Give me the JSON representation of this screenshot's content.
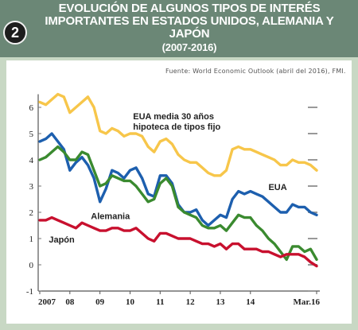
{
  "header": {
    "badge": "2",
    "title_line1": "EVOLUCIÓN DE ALGUNOS TIPOS DE INTERÉS",
    "title_line2": "IMPORTANTES EN ESTADOS UNIDOS, ALEMANIA Y",
    "title_line3": "JAPÓN",
    "title_line4": "(2007-2016)"
  },
  "source": "Fuente: World Economic Outlook (abril del 2016), FMI.",
  "chart_data": {
    "type": "line",
    "title": "EVOLUCIÓN DE ALGUNOS TIPOS DE INTERÉS IMPORTANTES EN ESTADOS UNIDOS, ALEMANIA Y JAPÓN (2007-2016)",
    "ylim": [
      -1,
      6.7
    ],
    "yticks": [
      "6",
      "5",
      "4",
      "3",
      "2",
      "1",
      "0",
      "-1"
    ],
    "ytick_values": [
      6,
      5,
      4,
      3,
      2,
      1,
      0,
      -1
    ],
    "xtick_labels": [
      "2007",
      "08",
      "09",
      "10",
      "11",
      "12",
      "13",
      "14",
      "Mar.16"
    ],
    "xtick_values": [
      2007.0,
      2008.0,
      2009.0,
      2010.0,
      2011.0,
      2012.0,
      2013.0,
      2014.0,
      2016.2
    ],
    "xlim": [
      2007.0,
      2016.2
    ],
    "grid": false,
    "series": [
      {
        "name": "EUA media 30 años hipoteca de tipos fijo",
        "color": "#f7c64a",
        "label_lines": [
          "EUA media 30 años",
          "hipoteca de tipos fijo"
        ],
        "x": [
          2007.0,
          2007.2,
          2007.4,
          2007.6,
          2007.8,
          2008.0,
          2008.2,
          2008.4,
          2008.6,
          2008.8,
          2009.0,
          2009.2,
          2009.4,
          2009.6,
          2009.8,
          2010.0,
          2010.2,
          2010.4,
          2010.6,
          2010.8,
          2011.0,
          2011.2,
          2011.4,
          2011.6,
          2011.8,
          2012.0,
          2012.2,
          2012.4,
          2012.6,
          2012.8,
          2013.0,
          2013.2,
          2013.4,
          2013.6,
          2013.8,
          2014.0,
          2014.2,
          2014.4,
          2014.6,
          2014.8,
          2015.0,
          2015.2,
          2015.4,
          2015.6,
          2015.8,
          2016.0,
          2016.2
        ],
        "values": [
          6.2,
          6.1,
          6.3,
          6.5,
          6.4,
          5.8,
          6.0,
          6.2,
          6.4,
          6.0,
          5.1,
          5.0,
          5.2,
          5.1,
          4.9,
          5.0,
          5.0,
          4.9,
          4.5,
          4.3,
          4.7,
          4.8,
          4.6,
          4.2,
          4.0,
          3.9,
          3.9,
          3.7,
          3.5,
          3.4,
          3.4,
          3.6,
          4.4,
          4.5,
          4.4,
          4.4,
          4.3,
          4.2,
          4.1,
          4.0,
          3.8,
          3.8,
          4.0,
          3.9,
          3.9,
          3.8,
          3.6
        ]
      },
      {
        "name": "EUA",
        "color": "#1d5fae",
        "label_lines": [
          "EUA"
        ],
        "x": [
          2007.0,
          2007.2,
          2007.4,
          2007.6,
          2007.8,
          2008.0,
          2008.2,
          2008.4,
          2008.6,
          2008.8,
          2009.0,
          2009.2,
          2009.4,
          2009.6,
          2009.8,
          2010.0,
          2010.2,
          2010.4,
          2010.6,
          2010.8,
          2011.0,
          2011.2,
          2011.4,
          2011.6,
          2011.8,
          2012.0,
          2012.2,
          2012.4,
          2012.6,
          2012.8,
          2013.0,
          2013.2,
          2013.4,
          2013.6,
          2013.8,
          2014.0,
          2014.2,
          2014.4,
          2014.6,
          2014.8,
          2015.0,
          2015.2,
          2015.4,
          2015.6,
          2015.8,
          2016.0,
          2016.2
        ],
        "values": [
          4.7,
          4.8,
          5.0,
          4.7,
          4.4,
          3.6,
          3.9,
          4.1,
          3.8,
          3.3,
          2.4,
          2.9,
          3.6,
          3.5,
          3.3,
          3.6,
          3.7,
          3.3,
          2.7,
          2.6,
          3.4,
          3.4,
          3.1,
          2.3,
          2.0,
          2.0,
          2.1,
          1.7,
          1.5,
          1.7,
          1.9,
          1.8,
          2.5,
          2.8,
          2.7,
          2.8,
          2.7,
          2.6,
          2.4,
          2.2,
          2.0,
          2.0,
          2.3,
          2.2,
          2.2,
          2.0,
          1.9
        ]
      },
      {
        "name": "Alemania",
        "color": "#3a8a2f",
        "label_lines": [
          "Alemania"
        ],
        "x": [
          2007.0,
          2007.2,
          2007.4,
          2007.6,
          2007.8,
          2008.0,
          2008.2,
          2008.4,
          2008.6,
          2008.8,
          2009.0,
          2009.2,
          2009.4,
          2009.6,
          2009.8,
          2010.0,
          2010.2,
          2010.4,
          2010.6,
          2010.8,
          2011.0,
          2011.2,
          2011.4,
          2011.6,
          2011.8,
          2012.0,
          2012.2,
          2012.4,
          2012.6,
          2012.8,
          2013.0,
          2013.2,
          2013.4,
          2013.6,
          2013.8,
          2014.0,
          2014.2,
          2014.4,
          2014.6,
          2014.8,
          2015.0,
          2015.2,
          2015.4,
          2015.6,
          2015.8,
          2016.0,
          2016.2
        ],
        "values": [
          4.0,
          4.1,
          4.3,
          4.5,
          4.3,
          4.0,
          4.0,
          4.3,
          4.2,
          3.6,
          3.0,
          3.1,
          3.4,
          3.3,
          3.2,
          3.2,
          3.0,
          2.7,
          2.4,
          2.5,
          3.1,
          3.3,
          3.0,
          2.2,
          2.0,
          1.9,
          1.8,
          1.5,
          1.4,
          1.4,
          1.5,
          1.3,
          1.6,
          1.9,
          1.8,
          1.8,
          1.5,
          1.3,
          1.0,
          0.8,
          0.5,
          0.2,
          0.7,
          0.7,
          0.5,
          0.6,
          0.2
        ]
      },
      {
        "name": "Japón",
        "color": "#c8102e",
        "label_lines": [
          "Japón"
        ],
        "x": [
          2007.0,
          2007.2,
          2007.4,
          2007.6,
          2007.8,
          2008.0,
          2008.2,
          2008.4,
          2008.6,
          2008.8,
          2009.0,
          2009.2,
          2009.4,
          2009.6,
          2009.8,
          2010.0,
          2010.2,
          2010.4,
          2010.6,
          2010.8,
          2011.0,
          2011.2,
          2011.4,
          2011.6,
          2011.8,
          2012.0,
          2012.2,
          2012.4,
          2012.6,
          2012.8,
          2013.0,
          2013.2,
          2013.4,
          2013.6,
          2013.8,
          2014.0,
          2014.2,
          2014.4,
          2014.6,
          2014.8,
          2015.0,
          2015.2,
          2015.4,
          2015.6,
          2015.8,
          2016.0,
          2016.2
        ],
        "values": [
          1.7,
          1.7,
          1.8,
          1.7,
          1.6,
          1.5,
          1.4,
          1.6,
          1.5,
          1.4,
          1.3,
          1.3,
          1.4,
          1.4,
          1.3,
          1.3,
          1.4,
          1.2,
          1.0,
          0.9,
          1.2,
          1.2,
          1.1,
          1.0,
          1.0,
          1.0,
          0.9,
          0.8,
          0.8,
          0.7,
          0.8,
          0.6,
          0.8,
          0.8,
          0.6,
          0.6,
          0.6,
          0.5,
          0.5,
          0.4,
          0.3,
          0.4,
          0.4,
          0.4,
          0.3,
          0.1,
          -0.05
        ]
      }
    ]
  }
}
